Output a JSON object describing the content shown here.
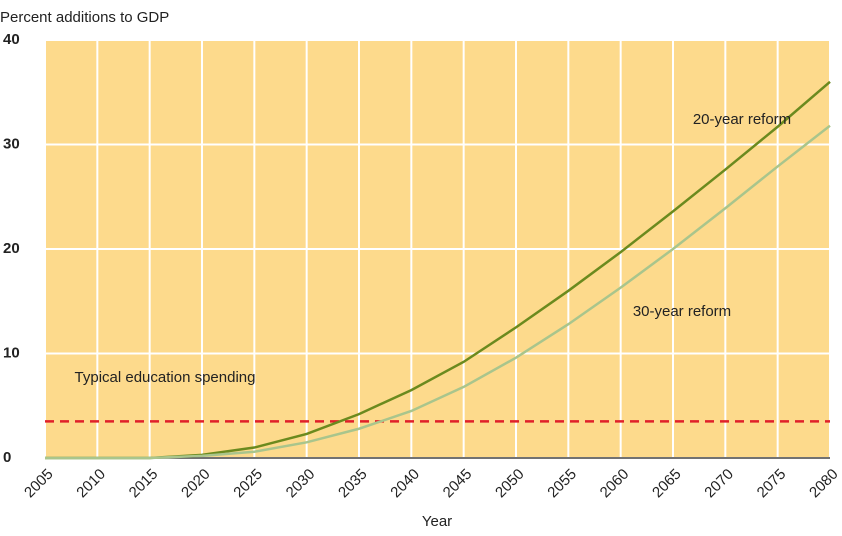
{
  "chart_data": {
    "type": "line",
    "y_axis_label": "Percent additions to GDP",
    "x_axis_label": "Year",
    "x": [
      2005,
      2010,
      2015,
      2020,
      2025,
      2030,
      2035,
      2040,
      2045,
      2050,
      2055,
      2060,
      2065,
      2070,
      2075,
      2080
    ],
    "series": [
      {
        "name": "20-year reform",
        "color": "#6b8a1e",
        "values": [
          0,
          0,
          0,
          0.3,
          1.0,
          2.3,
          4.2,
          6.5,
          9.2,
          12.5,
          16.0,
          19.7,
          23.6,
          27.6,
          31.7,
          36.0
        ]
      },
      {
        "name": "30-year reform",
        "color": "#a9c58c",
        "values": [
          0,
          0,
          0,
          0.2,
          0.6,
          1.5,
          2.8,
          4.5,
          6.8,
          9.6,
          12.8,
          16.3,
          20.0,
          23.9,
          27.9,
          31.8
        ]
      }
    ],
    "reference_line": {
      "value": 3.5,
      "label": "Typical education spending",
      "color": "#e0202a"
    },
    "xlim": [
      2005,
      2080
    ],
    "xticks": [
      2005,
      2010,
      2015,
      2020,
      2025,
      2030,
      2035,
      2040,
      2045,
      2050,
      2055,
      2060,
      2065,
      2070,
      2075,
      2080
    ],
    "ylim": [
      0,
      40
    ],
    "yticks": [
      0,
      10,
      20,
      30,
      40
    ],
    "grid": true,
    "background": "#fdda8c"
  }
}
